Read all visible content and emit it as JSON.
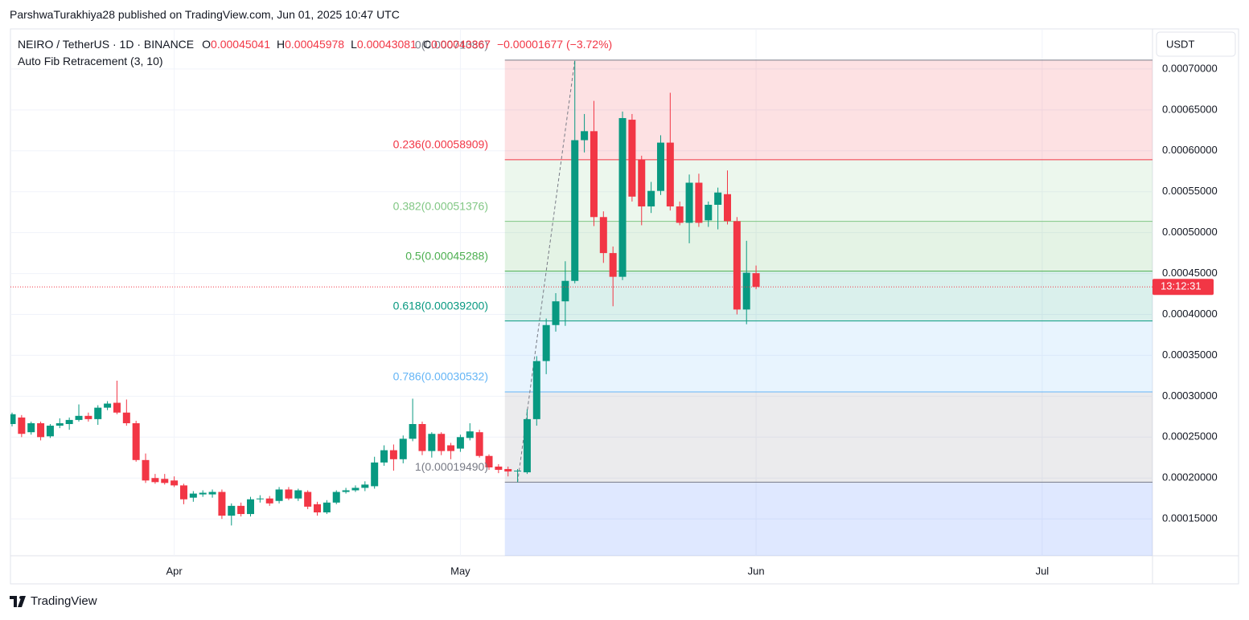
{
  "page": {
    "published": "ParshwaTurakhiya28 published on TradingView.com, Jun 01, 2025 10:47 UTC",
    "brand": "TradingView"
  },
  "chart_data": {
    "type": "candlestick",
    "symbol": "NEIRO / TetherUS · 1D · BINANCE",
    "ohlc_legend": [
      {
        "key": "O",
        "value": "0.00045041"
      },
      {
        "key": "H",
        "value": "0.00045978"
      },
      {
        "key": "L",
        "value": "0.00043081"
      },
      {
        "key": "C",
        "value": "0.00043367"
      }
    ],
    "change": "−0.00001677 (−3.72%)",
    "indicator": "Auto Fib Retracement (3, 10)",
    "currency": "USDT",
    "countdown": "13:12:31",
    "up_color": "#089981",
    "down_color": "#f23645",
    "categories": [
      null,
      null,
      null,
      null,
      null,
      null,
      null,
      null,
      null,
      null,
      null,
      null,
      null,
      null,
      null,
      null,
      null,
      "Apr",
      null,
      null,
      null,
      null,
      null,
      null,
      null,
      null,
      null,
      null,
      null,
      null,
      null,
      null,
      null,
      null,
      null,
      null,
      null,
      null,
      null,
      null,
      null,
      null,
      null,
      null,
      null,
      null,
      null,
      "May",
      null,
      null,
      null,
      null,
      null,
      null,
      null,
      null,
      null,
      null,
      null,
      null,
      null,
      null,
      null,
      null,
      null,
      null,
      null,
      null,
      null,
      null,
      null,
      null,
      null,
      null,
      null,
      null,
      null,
      null,
      "Jun",
      null,
      null,
      null,
      null,
      null,
      null,
      null,
      null,
      null,
      null,
      null,
      null,
      null,
      null,
      null,
      null,
      null,
      null,
      null,
      null,
      null,
      null,
      null,
      null,
      null,
      null,
      null,
      null,
      null,
      "Jul",
      null,
      null,
      null,
      null,
      null,
      null,
      null,
      null,
      null,
      null,
      null,
      null
    ],
    "open": [
      0.000266,
      0.000274,
      0.000256,
      0.000267,
      0.000251,
      0.000264,
      0.000266,
      0.000271,
      0.000276,
      0.000272,
      0.000286,
      0.000292,
      0.00028,
      0.000267,
      0.000222,
      0.0002,
      0.000199,
      0.000197,
      0.000191,
      0.000176,
      0.00018,
      0.00018,
      0.000183,
      0.000154,
      0.000166,
      0.000156,
      0.000174,
      0.000175,
      0.000172,
      0.000186,
      0.000175,
      0.000183,
      0.000168,
      0.000158,
      0.00017,
      0.000183,
      0.000185,
      0.000188,
      0.00019,
      0.000219,
      0.000234,
      0.000223,
      0.000248,
      0.000266,
      0.000233,
      0.000254,
      0.00024,
      0.000236,
      0.000249,
      0.000256,
      0.000227,
      0.000214,
      0.000211,
      0.000208,
      0.000207,
      0.000272,
      0.000343,
      0.000387,
      0.000416,
      0.000441,
      0.000613,
      0.000624,
      0.000519,
      0.000475,
      0.000446,
      0.000638,
      0.000589,
      0.000532,
      0.000551,
      0.00061,
      0.000532,
      0.000512,
      0.000561,
      0.000515,
      0.000534,
      0.000547,
      0.000514,
      0.000406,
      0.00045041,
      null,
      null,
      null,
      null,
      null,
      null,
      null,
      null,
      null,
      null,
      null,
      null,
      null,
      null,
      null,
      null,
      null,
      null,
      null,
      null,
      null,
      null,
      null,
      null,
      null,
      null,
      null,
      null,
      null,
      null,
      null,
      null,
      null,
      null,
      null,
      null,
      null,
      null,
      null,
      null,
      null,
      null
    ],
    "high": [
      0.00028,
      0.000277,
      0.000269,
      0.000269,
      0.000266,
      0.000273,
      0.000274,
      0.00029,
      0.00028,
      0.000289,
      0.000294,
      0.000319,
      0.000296,
      0.00027,
      0.00023,
      0.000205,
      0.000205,
      0.000202,
      0.000193,
      0.000184,
      0.000185,
      0.000186,
      0.000186,
      0.000169,
      0.00017,
      0.000177,
      0.000179,
      0.000178,
      0.000189,
      0.000189,
      0.000187,
      0.000185,
      0.000171,
      0.000173,
      0.000185,
      0.000188,
      0.000191,
      0.000196,
      0.000226,
      0.00024,
      0.000241,
      0.000252,
      0.000297,
      0.000269,
      0.000256,
      0.000256,
      0.000243,
      0.000253,
      0.000267,
      0.000259,
      0.000229,
      0.000217,
      0.000214,
      0.000211,
      0.000284,
      0.000349,
      0.000395,
      0.000426,
      0.000465,
      0.00071,
      0.000645,
      0.000661,
      0.000526,
      0.000483,
      0.000648,
      0.000645,
      0.000594,
      0.000562,
      0.000619,
      0.000671,
      0.000538,
      0.000571,
      0.000572,
      0.000538,
      0.000555,
      0.000576,
      0.000519,
      0.00049,
      0.00045978,
      null,
      null,
      null,
      null,
      null,
      null,
      null,
      null,
      null,
      null,
      null,
      null,
      null,
      null,
      null,
      null,
      null,
      null,
      null,
      null,
      null,
      null,
      null,
      null,
      null,
      null,
      null,
      null,
      null,
      null,
      null,
      null,
      null,
      null,
      null,
      null,
      null,
      null,
      null,
      null,
      null,
      null
    ],
    "low": [
      0.000263,
      0.00025,
      0.000253,
      0.000246,
      0.000249,
      0.000261,
      0.000259,
      0.000269,
      0.000269,
      0.000265,
      0.000283,
      0.000278,
      0.000264,
      0.00022,
      0.000194,
      0.000193,
      0.000192,
      0.000189,
      0.000168,
      0.000171,
      0.000177,
      0.000176,
      0.00015,
      0.000142,
      0.000153,
      0.000153,
      0.00017,
      0.000166,
      0.000169,
      0.000173,
      0.000172,
      0.000162,
      0.000154,
      0.000156,
      0.000168,
      0.000181,
      0.000183,
      0.000184,
      0.000187,
      0.000215,
      0.000209,
      0.000218,
      0.000245,
      0.000228,
      0.000225,
      0.000228,
      0.000223,
      0.000232,
      0.000246,
      0.000225,
      0.00021,
      0.000206,
      0.000202,
      0.000195,
      0.000205,
      0.000264,
      0.000327,
      0.000379,
      0.000386,
      0.000438,
      0.000598,
      0.000508,
      0.000463,
      0.00041,
      0.000442,
      0.000538,
      0.000509,
      0.000524,
      0.000546,
      0.000527,
      0.000509,
      0.000487,
      0.000507,
      0.000507,
      0.000504,
      0.00051,
      0.0004,
      0.000388,
      0.00043081,
      null,
      null,
      null,
      null,
      null,
      null,
      null,
      null,
      null,
      null,
      null,
      null,
      null,
      null,
      null,
      null,
      null,
      null,
      null,
      null,
      null,
      null,
      null,
      null,
      null,
      null,
      null,
      null,
      null,
      null,
      null,
      null,
      null,
      null,
      null,
      null,
      null,
      null,
      null,
      null,
      null,
      null
    ],
    "close": [
      0.000278,
      0.000254,
      0.000267,
      0.00025,
      0.000264,
      0.000267,
      0.000271,
      0.000276,
      0.000272,
      0.000286,
      0.000291,
      0.00028,
      0.000267,
      0.000222,
      0.000197,
      0.000195,
      0.000194,
      0.000191,
      0.000174,
      0.000181,
      0.000182,
      0.000183,
      0.000154,
      0.000166,
      0.000156,
      0.000174,
      0.000175,
      0.000169,
      0.000186,
      0.000175,
      0.000185,
      0.000165,
      0.000158,
      0.00017,
      0.000183,
      0.000185,
      0.000188,
      0.000192,
      0.000219,
      0.000234,
      0.000223,
      0.000248,
      0.000266,
      0.000233,
      0.000254,
      0.000233,
      0.000233,
      0.00025,
      0.000257,
      0.000227,
      0.000213,
      0.00021,
      0.000208,
      0.000209,
      0.000272,
      0.000343,
      0.000387,
      0.000416,
      0.000441,
      0.000613,
      0.000624,
      0.000519,
      0.000475,
      0.000446,
      0.00064,
      0.000544,
      0.000532,
      0.000551,
      0.00061,
      0.000532,
      0.000512,
      0.000561,
      0.000512,
      0.000534,
      0.000549,
      0.000514,
      0.000406,
      0.000451,
      0.00043367,
      null,
      null,
      null,
      null,
      null,
      null,
      null,
      null,
      null,
      null,
      null,
      null,
      null,
      null,
      null,
      null,
      null,
      null,
      null,
      null,
      null,
      null,
      null,
      null,
      null,
      null,
      null,
      null,
      null,
      null,
      null,
      null,
      null,
      null,
      null,
      null,
      null,
      null,
      null,
      null,
      null,
      null
    ],
    "ylim": [
      0.000105,
      0.000749
    ],
    "yticks": [
      {
        "value": 0.00015,
        "label": "0.00015000"
      },
      {
        "value": 0.0002,
        "label": "0.00020000"
      },
      {
        "value": 0.00025,
        "label": "0.00025000"
      },
      {
        "value": 0.0003,
        "label": "0.00030000"
      },
      {
        "value": 0.00035,
        "label": "0.00035000"
      },
      {
        "value": 0.0004,
        "label": "0.00040000"
      },
      {
        "value": 0.00045,
        "label": "0.00045000"
      },
      {
        "value": 0.0005,
        "label": "0.00050000"
      },
      {
        "value": 0.00055,
        "label": "0.00055000"
      },
      {
        "value": 0.0006,
        "label": "0.00060000"
      },
      {
        "value": 0.00065,
        "label": "0.00065000"
      },
      {
        "value": 0.0007,
        "label": "0.00070000"
      }
    ],
    "grid": true,
    "fib_levels": [
      {
        "value": 0.00071086,
        "label": "0(0.00071086)",
        "color": "#787b86"
      },
      {
        "value": 0.00058909,
        "label": "0.236(0.00058909)",
        "color": "#f23645"
      },
      {
        "value": 0.00051376,
        "label": "0.382(0.00051376)",
        "color": "#81c784"
      },
      {
        "value": 0.00045288,
        "label": "0.5(0.00045288)",
        "color": "#4caf50"
      },
      {
        "value": 0.000392,
        "label": "0.618(0.00039200)",
        "color": "#089981"
      },
      {
        "value": 0.00030532,
        "label": "0.786(0.00030532)",
        "color": "#64b5f6"
      },
      {
        "value": 0.0001949,
        "label": "1(0.00019490)",
        "color": "#787b86"
      }
    ]
  }
}
